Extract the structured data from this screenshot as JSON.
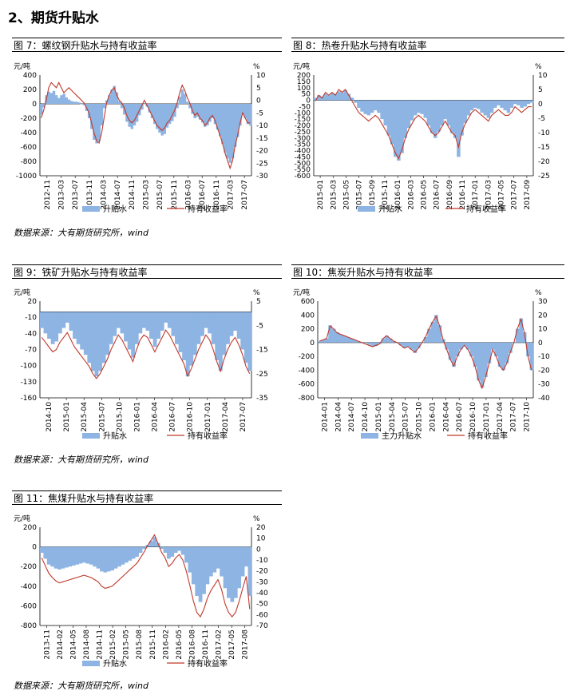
{
  "page": {
    "heading": "2、期货升贴水",
    "source_text": "数据来源：大有期货研究所，wind"
  },
  "chart_data": [
    {
      "id": "fig7",
      "type": "area+line",
      "title": "图 7：螺纹钢升贴水与持有收益率",
      "left_unit": "元/吨",
      "right_unit": "%",
      "ylim_left": [
        -1000,
        400
      ],
      "yticks_left": [
        400,
        200,
        0,
        -200,
        -400,
        -600,
        -800,
        -1000
      ],
      "ylim_right": [
        -30,
        10
      ],
      "yticks_right": [
        10,
        5,
        0,
        -5,
        -10,
        -15,
        -20,
        -25,
        -30
      ],
      "x_ticks": [
        "2012-11",
        "2013-03",
        "2013-07",
        "2013-11",
        "2014-03",
        "2014-07",
        "2014-11",
        "2015-03",
        "2015-07",
        "2015-11",
        "2016-03",
        "2016-07",
        "2016-11",
        "2017-03",
        "2017-07"
      ],
      "legend": [
        "升贴水",
        "持有收益率"
      ],
      "colors": {
        "bar": "#8db4e2",
        "line": "#c0392b"
      },
      "basis_series": [
        -150,
        -50,
        120,
        170,
        150,
        180,
        120,
        80,
        120,
        140,
        90,
        60,
        40,
        30,
        30,
        20,
        0,
        -20,
        -100,
        -200,
        -350,
        -500,
        -550,
        -520,
        -300,
        -60,
        50,
        120,
        200,
        250,
        160,
        40,
        -60,
        -150,
        -250,
        -320,
        -350,
        -300,
        -250,
        -160,
        -80,
        0,
        -40,
        -120,
        -200,
        -280,
        -350,
        -400,
        -440,
        -420,
        -330,
        -280,
        -240,
        -180,
        -60,
        100,
        200,
        140,
        30,
        -60,
        -140,
        -200,
        -180,
        -220,
        -260,
        -320,
        -300,
        -250,
        -200,
        -280,
        -360,
        -450,
        -560,
        -680,
        -760,
        -820,
        -760,
        -600,
        -460,
        -300,
        -150,
        -200,
        -280,
        -300
      ],
      "yield_series": [
        -7,
        -4,
        0,
        5,
        7,
        6,
        5,
        7,
        5,
        3,
        4,
        5,
        4,
        3,
        2,
        1,
        0,
        -1,
        -3,
        -5,
        -9,
        -13,
        -16,
        -17,
        -13,
        -7,
        -1,
        2,
        4,
        5,
        2,
        0,
        -1,
        -3,
        -6,
        -8,
        -9,
        -8,
        -6,
        -4,
        -2,
        0,
        -2,
        -4,
        -6,
        -8,
        -10,
        -11,
        -12,
        -11,
        -9,
        -8,
        -6,
        -4,
        -1,
        3,
        6,
        4,
        1,
        -1,
        -4,
        -6,
        -5,
        -7,
        -8,
        -10,
        -9,
        -7,
        -6,
        -8,
        -11,
        -14,
        -17,
        -21,
        -24,
        -27,
        -24,
        -18,
        -14,
        -9,
        -5,
        -7,
        -9,
        -9
      ]
    },
    {
      "id": "fig8",
      "type": "area+line",
      "title": "图 8：热卷升贴水与持有收益率",
      "left_unit": "元/吨",
      "right_unit": "%",
      "ylim_left": [
        -600,
        200
      ],
      "yticks_left": [
        200,
        150,
        100,
        50,
        0,
        -50,
        -100,
        -150,
        -200,
        -250,
        -300,
        -350,
        -400,
        -450,
        -500,
        -550,
        -600
      ],
      "ylim_right": [
        -25,
        10
      ],
      "yticks_right": [
        10,
        5,
        0,
        -5,
        -10,
        -15,
        -20,
        -25
      ],
      "x_ticks": [
        "2015-01",
        "2015-03",
        "2015-05",
        "2015-07",
        "2015-09",
        "2015-11",
        "2016-01",
        "2016-03",
        "2016-05",
        "2016-07",
        "2016-09",
        "2016-11",
        "2017-01",
        "2017-03",
        "2017-05",
        "2017-07",
        "2017-09"
      ],
      "legend": [
        "升贴水",
        "持有收益率"
      ],
      "colors": {
        "bar": "#8db4e2",
        "line": "#c0392b"
      },
      "basis_series": [
        20,
        40,
        30,
        50,
        40,
        60,
        50,
        70,
        60,
        80,
        50,
        20,
        -20,
        -60,
        -90,
        -110,
        -120,
        -100,
        -80,
        -100,
        -150,
        -200,
        -280,
        -350,
        -450,
        -480,
        -420,
        -300,
        -220,
        -160,
        -120,
        -100,
        -110,
        -140,
        -200,
        -260,
        -300,
        -250,
        -200,
        -150,
        -200,
        -260,
        -300,
        -450,
        -280,
        -180,
        -120,
        -80,
        -60,
        -70,
        -100,
        -120,
        -140,
        -100,
        -60,
        -40,
        -60,
        -80,
        -100,
        -60,
        -30,
        -40,
        -60,
        -50,
        -30,
        -20
      ],
      "yield_series": [
        1,
        3,
        2,
        4,
        3,
        4,
        3,
        5,
        4,
        5,
        3,
        1,
        -1,
        -3,
        -4,
        -5,
        -6,
        -5,
        -4,
        -5,
        -7,
        -9,
        -11,
        -14,
        -17,
        -19,
        -16,
        -12,
        -9,
        -7,
        -5,
        -4,
        -5,
        -6,
        -8,
        -10,
        -11,
        -10,
        -8,
        -6,
        -8,
        -10,
        -11,
        -15,
        -10,
        -7,
        -5,
        -3,
        -2,
        -3,
        -4,
        -5,
        -6,
        -4,
        -3,
        -2,
        -3,
        -4,
        -4,
        -3,
        -1,
        -2,
        -3,
        -2,
        -1,
        -1
      ]
    },
    {
      "id": "fig9",
      "type": "area+line",
      "title": "图 9：铁矿升贴水与持有收益率",
      "left_unit": "元/吨",
      "right_unit": "%",
      "ylim_left": [
        -160,
        20
      ],
      "yticks_left": [
        20,
        -10,
        -40,
        -70,
        -100,
        -130,
        -160
      ],
      "ylim_right": [
        -35,
        5
      ],
      "yticks_right": [
        5,
        -5,
        -15,
        -25,
        -35
      ],
      "x_ticks": [
        "2014-10",
        "2015-01",
        "2015-04",
        "2015-07",
        "2015-10",
        "2016-01",
        "2016-04",
        "2016-07",
        "2016-10",
        "2017-01",
        "2017-04",
        "2017-07"
      ],
      "legend": [
        "升贴水",
        "持有收益率"
      ],
      "colors": {
        "bar": "#8db4e2",
        "line": "#c0392b"
      },
      "basis_series": [
        -30,
        -40,
        -50,
        -60,
        -55,
        -40,
        -30,
        -20,
        -35,
        -50,
        -60,
        -70,
        -80,
        -95,
        -110,
        -120,
        -110,
        -95,
        -80,
        -60,
        -45,
        -30,
        -40,
        -55,
        -70,
        -85,
        -60,
        -40,
        -30,
        -35,
        -50,
        -65,
        -50,
        -35,
        -20,
        -30,
        -45,
        -60,
        -75,
        -90,
        -120,
        -100,
        -80,
        -60,
        -45,
        -30,
        -40,
        -60,
        -90,
        -110,
        -80,
        -60,
        -45,
        -35,
        -50,
        -70,
        -95,
        -110
      ],
      "yield_series": [
        -10,
        -12,
        -14,
        -16,
        -15,
        -12,
        -10,
        -8,
        -11,
        -14,
        -16,
        -18,
        -20,
        -22,
        -25,
        -27,
        -25,
        -22,
        -19,
        -15,
        -12,
        -9,
        -11,
        -14,
        -17,
        -20,
        -15,
        -11,
        -9,
        -10,
        -13,
        -16,
        -13,
        -10,
        -7,
        -9,
        -12,
        -15,
        -18,
        -21,
        -26,
        -23,
        -19,
        -15,
        -12,
        -9,
        -11,
        -15,
        -20,
        -24,
        -19,
        -15,
        -12,
        -10,
        -13,
        -17,
        -22,
        -25
      ]
    },
    {
      "id": "fig10",
      "type": "area+line",
      "title": "图 10：焦炭升贴水与持有收益率",
      "left_unit": "元/吨",
      "right_unit": "%",
      "ylim_left": [
        -800,
        600
      ],
      "yticks_left": [
        600,
        400,
        200,
        0,
        -200,
        -400,
        -600,
        -800
      ],
      "ylim_right": [
        -40,
        30
      ],
      "yticks_right": [
        30,
        20,
        10,
        0,
        -10,
        -20,
        -30,
        -40
      ],
      "x_ticks": [
        "2014-01",
        "2014-04",
        "2014-07",
        "2014-10",
        "2015-01",
        "2015-04",
        "2015-07",
        "2015-10",
        "2016-01",
        "2016-04",
        "2016-07",
        "2016-10",
        "2017-01",
        "2017-04",
        "2017-07",
        "2017-10"
      ],
      "legend": [
        "主力升贴水",
        "持有收益率"
      ],
      "colors": {
        "bar": "#8db4e2",
        "line": "#c0392b"
      },
      "basis_series": [
        20,
        40,
        60,
        250,
        200,
        150,
        120,
        100,
        80,
        60,
        40,
        20,
        10,
        -10,
        -30,
        -60,
        -50,
        -20,
        60,
        100,
        60,
        20,
        0,
        -40,
        -80,
        -60,
        -100,
        -150,
        -80,
        0,
        80,
        200,
        300,
        400,
        250,
        50,
        -100,
        -250,
        -350,
        -200,
        -100,
        -50,
        -100,
        -200,
        -350,
        -550,
        -650,
        -500,
        -300,
        -100,
        -200,
        -350,
        -400,
        -300,
        -150,
        0,
        200,
        350,
        150,
        -200,
        -400
      ],
      "yield_series": [
        1,
        2,
        3,
        12,
        10,
        7,
        6,
        5,
        4,
        3,
        2,
        1,
        0,
        -1,
        -2,
        -3,
        -2,
        -1,
        3,
        5,
        3,
        1,
        0,
        -2,
        -4,
        -3,
        -5,
        -7,
        -4,
        0,
        4,
        10,
        15,
        19,
        12,
        2,
        -5,
        -12,
        -17,
        -10,
        -5,
        -2,
        -5,
        -10,
        -17,
        -27,
        -33,
        -25,
        -15,
        -5,
        -10,
        -17,
        -20,
        -15,
        -7,
        0,
        10,
        17,
        7,
        -10,
        -20
      ]
    },
    {
      "id": "fig11",
      "type": "area+line",
      "title": "图 11：焦煤升贴水与持有收益率",
      "left_unit": "元/吨",
      "right_unit": "%",
      "ylim_left": [
        -800,
        200
      ],
      "yticks_left": [
        200,
        0,
        -200,
        -400,
        -600,
        -800
      ],
      "ylim_right": [
        -70,
        20
      ],
      "yticks_right": [
        20,
        10,
        0,
        -10,
        -20,
        -30,
        -40,
        -50,
        -60,
        -70
      ],
      "x_ticks": [
        "2013-11",
        "2014-02",
        "2014-05",
        "2014-08",
        "2014-11",
        "2015-02",
        "2015-05",
        "2015-08",
        "2015-11",
        "2016-02",
        "2016-05",
        "2016-08",
        "2016-11",
        "2017-02",
        "2017-05",
        "2017-08"
      ],
      "legend": [
        "升贴水",
        "持有收益率"
      ],
      "colors": {
        "bar": "#8db4e2",
        "line": "#c0392b"
      },
      "basis_series": [
        -60,
        -120,
        -180,
        -200,
        -220,
        -230,
        -220,
        -210,
        -200,
        -190,
        -180,
        -170,
        -160,
        -170,
        -180,
        -200,
        -220,
        -250,
        -260,
        -250,
        -240,
        -220,
        -200,
        -180,
        -160,
        -140,
        -120,
        -100,
        -60,
        -20,
        20,
        60,
        100,
        40,
        -20,
        -60,
        -120,
        -100,
        -60,
        -40,
        -80,
        -160,
        -260,
        -380,
        -500,
        -560,
        -480,
        -380,
        -300,
        -260,
        -220,
        -300,
        -420,
        -520,
        -560,
        -520,
        -420,
        -300,
        -200,
        -500
      ],
      "yield_series": [
        -8,
        -15,
        -22,
        -26,
        -29,
        -31,
        -30,
        -29,
        -28,
        -27,
        -26,
        -25,
        -24,
        -25,
        -26,
        -28,
        -30,
        -34,
        -36,
        -35,
        -34,
        -31,
        -28,
        -25,
        -22,
        -19,
        -16,
        -13,
        -8,
        -3,
        3,
        8,
        13,
        5,
        -3,
        -8,
        -16,
        -13,
        -8,
        -5,
        -10,
        -20,
        -33,
        -47,
        -58,
        -62,
        -55,
        -45,
        -38,
        -33,
        -28,
        -37,
        -50,
        -58,
        -62,
        -58,
        -48,
        -36,
        -25,
        -55
      ]
    }
  ]
}
